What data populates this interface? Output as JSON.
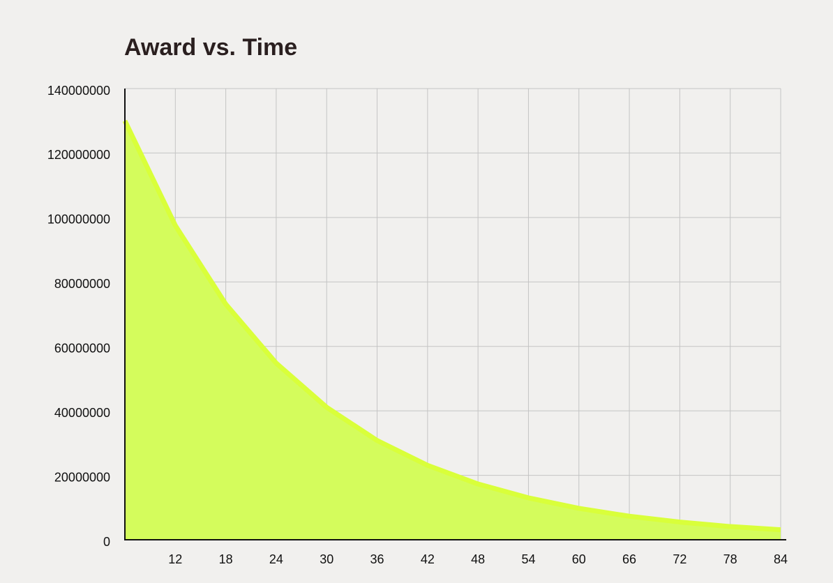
{
  "chart_data": {
    "type": "area",
    "title": "Award vs. Time",
    "x": [
      6,
      12,
      18,
      24,
      30,
      36,
      42,
      48,
      54,
      60,
      66,
      72,
      78,
      84
    ],
    "values": [
      130000000,
      97500000,
      73100000,
      54800000,
      41100000,
      30800000,
      23100000,
      17300000,
      13000000,
      9750000,
      7300000,
      5500000,
      4100000,
      3100000
    ],
    "color": "#d4fc5c",
    "line_color": "#d9ff3a",
    "xlim": [
      6,
      84
    ],
    "xticks": [
      12,
      18,
      24,
      30,
      36,
      42,
      48,
      54,
      60,
      66,
      72,
      78,
      84
    ],
    "ylim": [
      0,
      140000000
    ],
    "yticks": [
      0,
      20000000,
      40000000,
      60000000,
      80000000,
      100000000,
      120000000,
      140000000
    ],
    "grid": true
  }
}
